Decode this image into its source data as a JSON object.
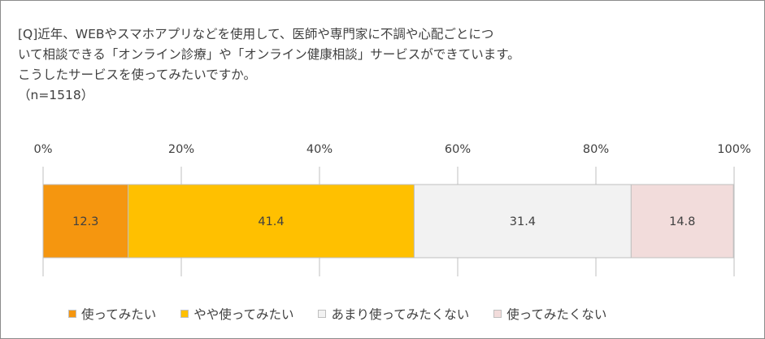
{
  "question": {
    "lines": [
      "[Q]近年、WEBやスマホアプリなどを使用して、医師や専門家に不調や心配ごとにつ",
      "いて相談できる「オンライン診療」や「オンライン健康相談」サービスができています。",
      "こうしたサービスを使ってみたいですか。",
      "（n=1518）"
    ]
  },
  "chart_data": {
    "type": "bar",
    "orientation": "horizontal-stacked-100",
    "categories": [
      ""
    ],
    "xlim": [
      0,
      100
    ],
    "ticks": [
      "0%",
      "20%",
      "40%",
      "60%",
      "80%",
      "100%"
    ],
    "tick_values": [
      0,
      20,
      40,
      60,
      80,
      100
    ],
    "grid": true,
    "legend_position": "bottom",
    "series": [
      {
        "name": "使ってみたい",
        "values": [
          12.3
        ],
        "color": "#F5960F",
        "label": "12.3"
      },
      {
        "name": "やや使ってみたい",
        "values": [
          41.4
        ],
        "color": "#FFC000",
        "label": "41.4"
      },
      {
        "name": "あまり使ってみたくない",
        "values": [
          31.4
        ],
        "color": "#F2F2F2",
        "label": "31.4"
      },
      {
        "name": "使ってみたくない",
        "values": [
          14.8
        ],
        "color": "#F2DCDB",
        "label": "14.8"
      }
    ]
  }
}
